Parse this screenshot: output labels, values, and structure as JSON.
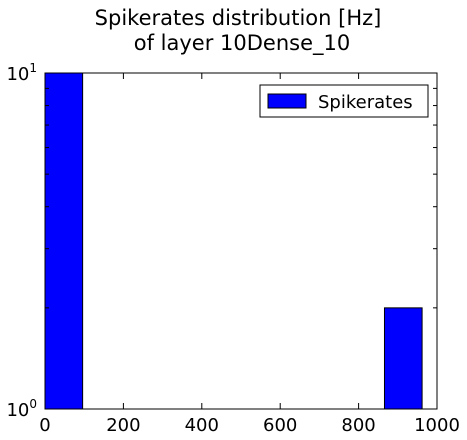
{
  "chart_data": {
    "type": "bar",
    "title_line1": "Spikerates distribution [Hz]",
    "title_line2": "of layer 10Dense_10",
    "xlabel": "",
    "ylabel": "",
    "x_range": [
      0,
      1000
    ],
    "y_scale": "log",
    "y_range": [
      1,
      10
    ],
    "x_ticks": [
      {
        "value": 0,
        "label": "0"
      },
      {
        "value": 200,
        "label": "200"
      },
      {
        "value": 400,
        "label": "400"
      },
      {
        "value": 600,
        "label": "600"
      },
      {
        "value": 800,
        "label": "800"
      },
      {
        "value": 1000,
        "label": "1000"
      }
    ],
    "y_ticks": [
      {
        "value": 1,
        "base": "10",
        "exp": "0"
      },
      {
        "value": 10,
        "base": "10",
        "exp": "1"
      }
    ],
    "bins": [
      {
        "x0": 0,
        "x1": 96,
        "count": 10
      },
      {
        "x0": 866,
        "x1": 962,
        "count": 2
      }
    ],
    "series": [
      {
        "name": "Spikerates",
        "color": "#0000ff"
      }
    ],
    "legend_position": "top-right",
    "grid": false
  }
}
